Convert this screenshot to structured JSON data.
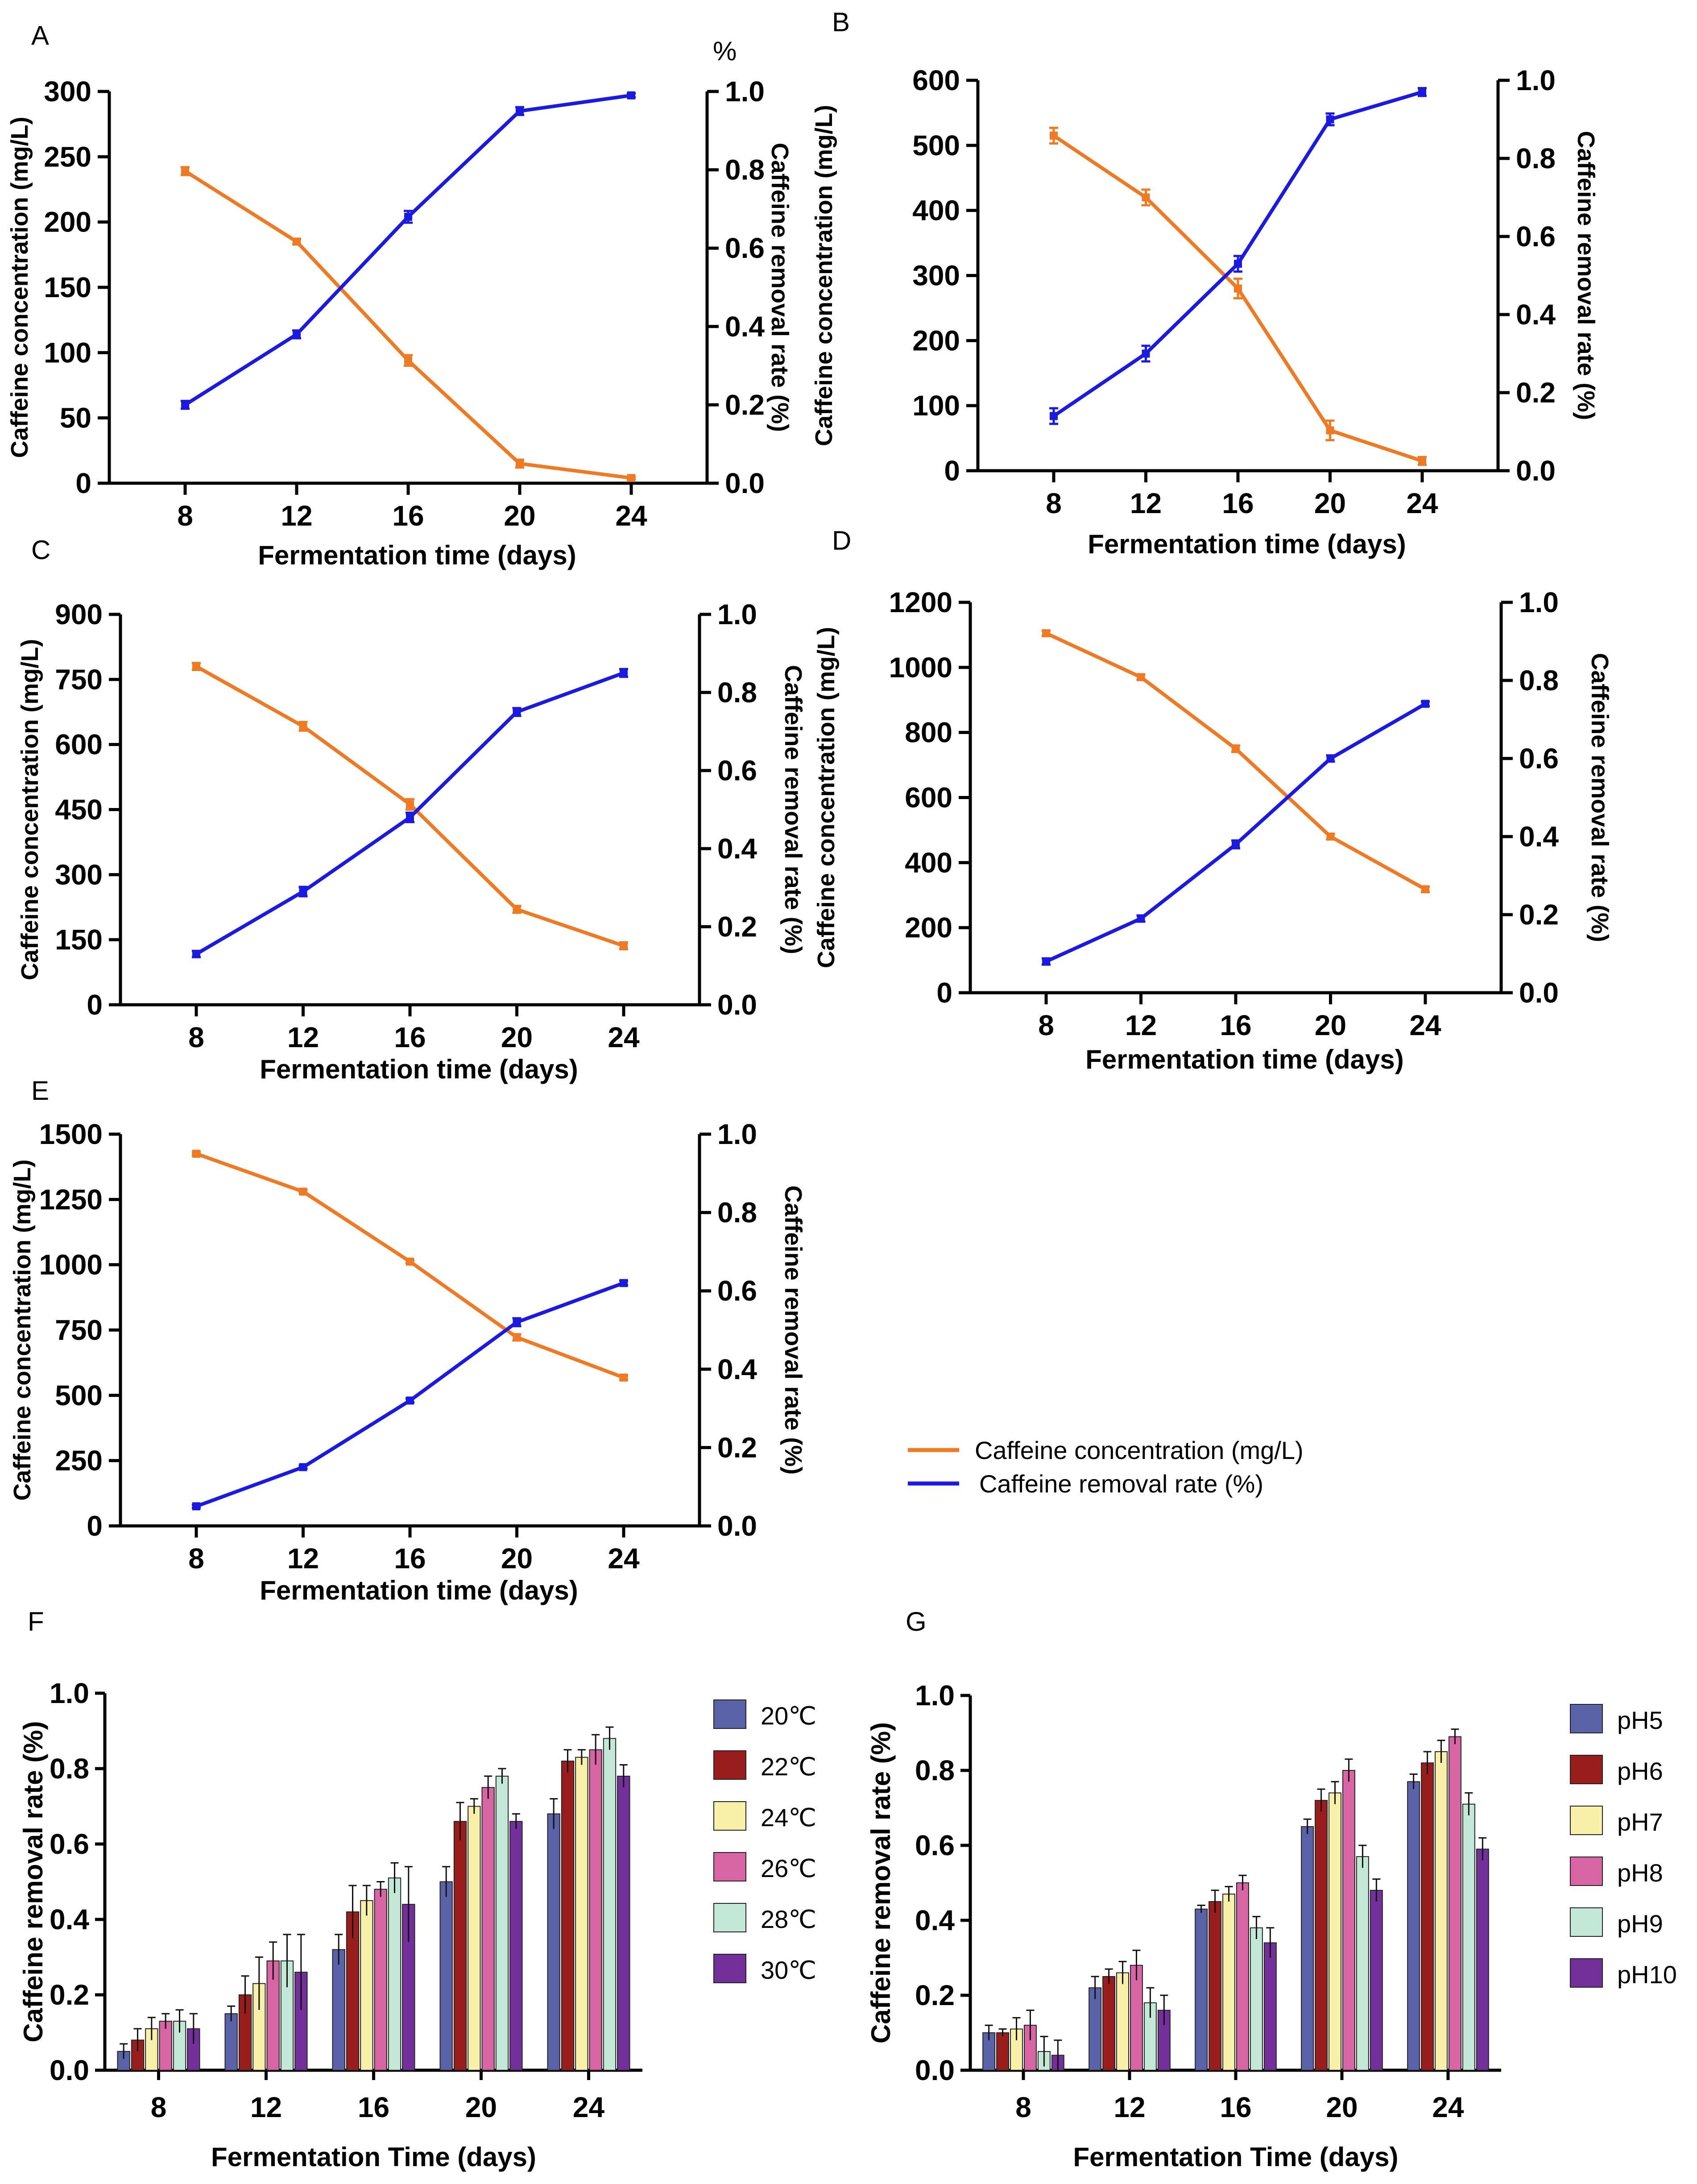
{
  "legend": {
    "series1_label": "Caffeine concentration (mg/L)",
    "series2_label": "Caffeine removal rate (%)"
  },
  "colors": {
    "concentration": "#f07a24",
    "removal": "#1a1ae0",
    "bar_palette": [
      "#5a63a8",
      "#9a1d1d",
      "#f8f0a8",
      "#d865a4",
      "#c4e8d8",
      "#74309a"
    ]
  },
  "chart_data": [
    {
      "panel": "A",
      "type": "line",
      "x": [
        8,
        12,
        16,
        20,
        24
      ],
      "xlabel": "Fermentation time (days)",
      "ylabel_left": "Caffeine concentration (mg/L)",
      "ylabel_right": "Caffeine removal rate (%)",
      "right_unit_label": "%",
      "ylim_left": [
        0,
        300
      ],
      "yticks_left": [
        0,
        50,
        100,
        150,
        200,
        250,
        300
      ],
      "ylim_right": [
        0,
        1.0
      ],
      "yticks_right": [
        "0.0",
        "0.2",
        "0.4",
        "0.6",
        "0.8",
        "1.0"
      ],
      "series": [
        {
          "name": "Caffeine concentration (mg/L)",
          "axis": "left",
          "values": [
            239,
            185,
            94,
            15,
            4
          ],
          "errors": [
            3,
            2,
            4,
            3,
            1
          ]
        },
        {
          "name": "Caffeine removal rate (%)",
          "axis": "right",
          "values": [
            0.2,
            0.38,
            0.68,
            0.95,
            0.99
          ],
          "errors": [
            0.01,
            0.01,
            0.015,
            0.01,
            0.005
          ]
        }
      ]
    },
    {
      "panel": "B",
      "type": "line",
      "x": [
        8,
        12,
        16,
        20,
        24
      ],
      "xlabel": "Fermentation time (days)",
      "ylabel_left": "Caffeine concentration (mg/L)",
      "ylabel_right": "Caffeine removal rate (%)",
      "ylim_left": [
        0,
        600
      ],
      "yticks_left": [
        0,
        100,
        200,
        300,
        400,
        500,
        600
      ],
      "ylim_right": [
        0,
        1.0
      ],
      "yticks_right": [
        "0.0",
        "0.2",
        "0.4",
        "0.6",
        "0.8",
        "1.0"
      ],
      "series": [
        {
          "name": "Caffeine concentration (mg/L)",
          "axis": "left",
          "values": [
            515,
            420,
            280,
            62,
            15
          ],
          "errors": [
            12,
            12,
            15,
            15,
            6
          ]
        },
        {
          "name": "Caffeine removal rate (%)",
          "axis": "right",
          "values": [
            0.14,
            0.3,
            0.53,
            0.9,
            0.97
          ],
          "errors": [
            0.02,
            0.02,
            0.02,
            0.015,
            0.01
          ]
        }
      ]
    },
    {
      "panel": "C",
      "type": "line",
      "x": [
        8,
        12,
        16,
        20,
        24
      ],
      "xlabel": "Fermentation time (days)",
      "ylabel_left": "Caffeine concentration (mg/L)",
      "ylabel_right": "Caffeine removal rate (%)",
      "ylim_left": [
        0,
        900
      ],
      "yticks_left": [
        0,
        150,
        300,
        450,
        600,
        750,
        900
      ],
      "ylim_right": [
        0,
        1.0
      ],
      "yticks_right": [
        "0.0",
        "0.2",
        "0.4",
        "0.6",
        "0.8",
        "1.0"
      ],
      "series": [
        {
          "name": "Caffeine concentration (mg/L)",
          "axis": "left",
          "values": [
            780,
            642,
            462,
            220,
            136
          ],
          "errors": [
            8,
            10,
            12,
            8,
            8
          ]
        },
        {
          "name": "Caffeine removal rate (%)",
          "axis": "right",
          "values": [
            0.13,
            0.29,
            0.48,
            0.75,
            0.85
          ],
          "errors": [
            0.008,
            0.012,
            0.012,
            0.01,
            0.01
          ]
        }
      ]
    },
    {
      "panel": "D",
      "type": "line",
      "x": [
        8,
        12,
        16,
        20,
        24
      ],
      "xlabel": "Fermentation time (days)",
      "ylabel_left": "Caffeine concentration (mg/L)",
      "ylabel_right": "Caffeine removal rate (%)",
      "ylim_left": [
        0,
        1200
      ],
      "yticks_left": [
        0,
        200,
        400,
        600,
        800,
        1000,
        1200
      ],
      "ylim_right": [
        0,
        1.0
      ],
      "yticks_right": [
        "0.0",
        "0.2",
        "0.4",
        "0.6",
        "0.8",
        "1.0"
      ],
      "series": [
        {
          "name": "Caffeine concentration (mg/L)",
          "axis": "left",
          "values": [
            1105,
            970,
            750,
            480,
            318
          ],
          "errors": [
            8,
            8,
            10,
            8,
            8
          ]
        },
        {
          "name": "Caffeine removal rate (%)",
          "axis": "right",
          "values": [
            0.08,
            0.19,
            0.38,
            0.6,
            0.74
          ],
          "errors": [
            0.008,
            0.008,
            0.01,
            0.008,
            0.006
          ]
        }
      ]
    },
    {
      "panel": "E",
      "type": "line",
      "x": [
        8,
        12,
        16,
        20,
        24
      ],
      "xlabel": "Fermentation time (days)",
      "ylabel_left": "Caffeine concentration (mg/L)",
      "ylabel_right": "Caffeine removal rate (%)",
      "ylim_left": [
        0,
        1500
      ],
      "yticks_left": [
        0,
        250,
        500,
        750,
        1000,
        1250,
        1500
      ],
      "ylim_right": [
        0,
        1.0
      ],
      "yticks_right": [
        "0.0",
        "0.2",
        "0.4",
        "0.6",
        "0.8",
        "1.0"
      ],
      "series": [
        {
          "name": "Caffeine concentration (mg/L)",
          "axis": "left",
          "values": [
            1425,
            1280,
            1012,
            722,
            568
          ],
          "errors": [
            6,
            6,
            6,
            12,
            8
          ]
        },
        {
          "name": "Caffeine removal rate (%)",
          "axis": "right",
          "values": [
            0.05,
            0.15,
            0.32,
            0.52,
            0.62
          ],
          "errors": [
            0.004,
            0.004,
            0.005,
            0.01,
            0.006
          ]
        }
      ]
    },
    {
      "panel": "F",
      "type": "bar",
      "categories": [
        "8",
        "12",
        "16",
        "20",
        "24"
      ],
      "xlabel": "Fermentation Time (days)",
      "ylabel": "Caffeine removal rate (%)",
      "ylim": [
        0,
        1.0
      ],
      "yticks": [
        "0.0",
        "0.2",
        "0.4",
        "0.6",
        "0.8",
        "1.0"
      ],
      "series": [
        {
          "name": "20℃",
          "values": [
            0.05,
            0.15,
            0.32,
            0.5,
            0.68
          ],
          "errors": [
            0.02,
            0.02,
            0.04,
            0.04,
            0.04
          ]
        },
        {
          "name": "22℃",
          "values": [
            0.08,
            0.2,
            0.42,
            0.66,
            0.82
          ],
          "errors": [
            0.03,
            0.05,
            0.07,
            0.05,
            0.03
          ]
        },
        {
          "name": "24℃",
          "values": [
            0.11,
            0.23,
            0.45,
            0.7,
            0.83
          ],
          "errors": [
            0.03,
            0.07,
            0.04,
            0.02,
            0.02
          ]
        },
        {
          "name": "26℃",
          "values": [
            0.13,
            0.29,
            0.48,
            0.75,
            0.85
          ],
          "errors": [
            0.02,
            0.05,
            0.02,
            0.03,
            0.04
          ]
        },
        {
          "name": "28℃",
          "values": [
            0.13,
            0.29,
            0.51,
            0.78,
            0.88
          ],
          "errors": [
            0.03,
            0.07,
            0.04,
            0.02,
            0.03
          ]
        },
        {
          "name": "30℃",
          "values": [
            0.11,
            0.26,
            0.44,
            0.66,
            0.78
          ],
          "errors": [
            0.04,
            0.1,
            0.1,
            0.02,
            0.03
          ]
        }
      ]
    },
    {
      "panel": "G",
      "type": "bar",
      "categories": [
        "8",
        "12",
        "16",
        "20",
        "24"
      ],
      "xlabel": "Fermentation Time (days)",
      "ylabel": "Caffeine removal rate (%)",
      "ylim": [
        0,
        1.0
      ],
      "yticks": [
        "0.0",
        "0.2",
        "0.4",
        "0.6",
        "0.8",
        "1.0"
      ],
      "series": [
        {
          "name": "pH5",
          "values": [
            0.1,
            0.22,
            0.43,
            0.65,
            0.77
          ],
          "errors": [
            0.02,
            0.03,
            0.01,
            0.02,
            0.02
          ]
        },
        {
          "name": "pH6",
          "values": [
            0.1,
            0.25,
            0.45,
            0.72,
            0.82
          ],
          "errors": [
            0.01,
            0.02,
            0.03,
            0.03,
            0.03
          ]
        },
        {
          "name": "pH7",
          "values": [
            0.11,
            0.26,
            0.47,
            0.74,
            0.85
          ],
          "errors": [
            0.03,
            0.03,
            0.02,
            0.03,
            0.03
          ]
        },
        {
          "name": "pH8",
          "values": [
            0.12,
            0.28,
            0.5,
            0.8,
            0.89
          ],
          "errors": [
            0.04,
            0.04,
            0.02,
            0.03,
            0.02
          ]
        },
        {
          "name": "pH9",
          "values": [
            0.05,
            0.18,
            0.38,
            0.57,
            0.71
          ],
          "errors": [
            0.04,
            0.04,
            0.03,
            0.03,
            0.03
          ]
        },
        {
          "name": "pH10",
          "values": [
            0.04,
            0.16,
            0.34,
            0.48,
            0.59
          ],
          "errors": [
            0.04,
            0.04,
            0.04,
            0.03,
            0.03
          ]
        }
      ]
    }
  ]
}
